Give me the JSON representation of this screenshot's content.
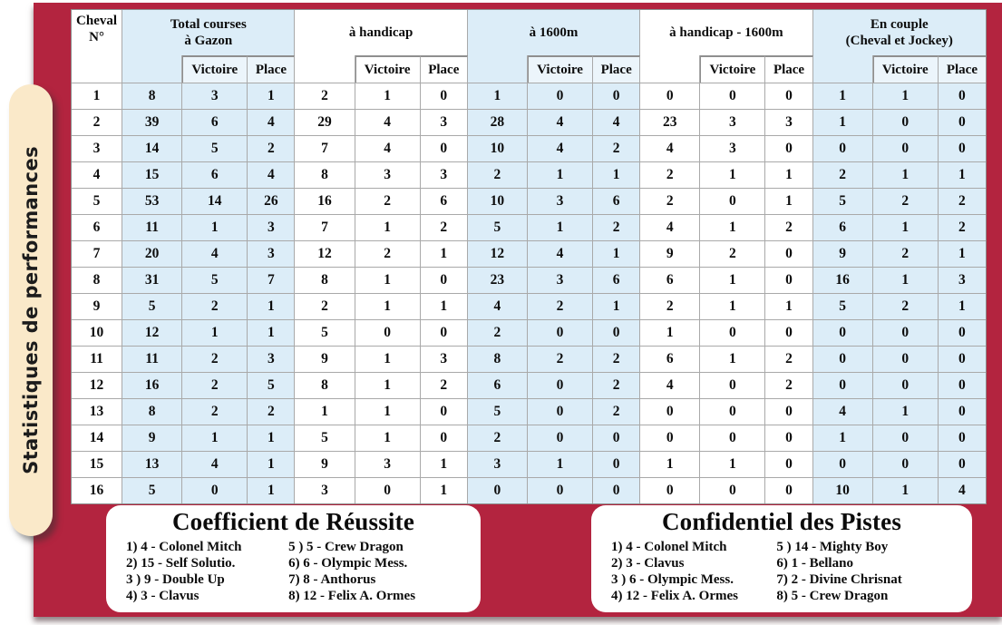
{
  "sidebar": {
    "title": "Statistiques de performances"
  },
  "colors": {
    "crimson": "#B3243F",
    "shaded_cell": "#DCEDF8",
    "pale_cell": "#ECF5FB",
    "pill": "#FAE9C9"
  },
  "table": {
    "corner": "Cheval\nN°",
    "subheader": {
      "victoire": "Victoire",
      "place": "Place"
    },
    "groups": [
      {
        "label": "Total courses\nà Gazon",
        "shaded": true
      },
      {
        "label": "à handicap",
        "shaded": false
      },
      {
        "label": "à 1600m",
        "shaded": true
      },
      {
        "label": "à handicap - 1600m",
        "shaded": false
      },
      {
        "label": "En couple\n(Cheval et Jockey)",
        "shaded": true
      }
    ],
    "rows": [
      {
        "cheval": "1",
        "values": [
          "8",
          "3",
          "1",
          "2",
          "1",
          "0",
          "1",
          "0",
          "0",
          "0",
          "0",
          "0",
          "1",
          "1",
          "0"
        ]
      },
      {
        "cheval": "2",
        "values": [
          "39",
          "6",
          "4",
          "29",
          "4",
          "3",
          "28",
          "4",
          "4",
          "23",
          "3",
          "3",
          "1",
          "0",
          "0"
        ]
      },
      {
        "cheval": "3",
        "values": [
          "14",
          "5",
          "2",
          "7",
          "4",
          "0",
          "10",
          "4",
          "2",
          "4",
          "3",
          "0",
          "0",
          "0",
          "0"
        ]
      },
      {
        "cheval": "4",
        "values": [
          "15",
          "6",
          "4",
          "8",
          "3",
          "3",
          "2",
          "1",
          "1",
          "2",
          "1",
          "1",
          "2",
          "1",
          "1"
        ]
      },
      {
        "cheval": "5",
        "values": [
          "53",
          "14",
          "26",
          "16",
          "2",
          "6",
          "10",
          "3",
          "6",
          "2",
          "0",
          "1",
          "5",
          "2",
          "2"
        ]
      },
      {
        "cheval": "6",
        "values": [
          "11",
          "1",
          "3",
          "7",
          "1",
          "2",
          "5",
          "1",
          "2",
          "4",
          "1",
          "2",
          "6",
          "1",
          "2"
        ]
      },
      {
        "cheval": "7",
        "values": [
          "20",
          "4",
          "3",
          "12",
          "2",
          "1",
          "12",
          "4",
          "1",
          "9",
          "2",
          "0",
          "9",
          "2",
          "1"
        ]
      },
      {
        "cheval": "8",
        "values": [
          "31",
          "5",
          "7",
          "8",
          "1",
          "0",
          "23",
          "3",
          "6",
          "6",
          "1",
          "0",
          "16",
          "1",
          "3"
        ]
      },
      {
        "cheval": "9",
        "values": [
          "5",
          "2",
          "1",
          "2",
          "1",
          "1",
          "4",
          "2",
          "1",
          "2",
          "1",
          "1",
          "5",
          "2",
          "1"
        ]
      },
      {
        "cheval": "10",
        "values": [
          "12",
          "1",
          "1",
          "5",
          "0",
          "0",
          "2",
          "0",
          "0",
          "1",
          "0",
          "0",
          "0",
          "0",
          "0"
        ]
      },
      {
        "cheval": "11",
        "values": [
          "11",
          "2",
          "3",
          "9",
          "1",
          "3",
          "8",
          "2",
          "2",
          "6",
          "1",
          "2",
          "0",
          "0",
          "0"
        ]
      },
      {
        "cheval": "12",
        "values": [
          "16",
          "2",
          "5",
          "8",
          "1",
          "2",
          "6",
          "0",
          "2",
          "4",
          "0",
          "2",
          "0",
          "0",
          "0"
        ]
      },
      {
        "cheval": "13",
        "values": [
          "8",
          "2",
          "2",
          "1",
          "1",
          "0",
          "5",
          "0",
          "2",
          "0",
          "0",
          "0",
          "4",
          "1",
          "0"
        ]
      },
      {
        "cheval": "14",
        "values": [
          "9",
          "1",
          "1",
          "5",
          "1",
          "0",
          "2",
          "0",
          "0",
          "0",
          "0",
          "0",
          "1",
          "0",
          "0"
        ]
      },
      {
        "cheval": "15",
        "values": [
          "13",
          "4",
          "1",
          "9",
          "3",
          "1",
          "3",
          "1",
          "0",
          "1",
          "1",
          "0",
          "0",
          "0",
          "0"
        ]
      },
      {
        "cheval": "16",
        "values": [
          "5",
          "0",
          "1",
          "3",
          "0",
          "1",
          "0",
          "0",
          "0",
          "0",
          "0",
          "0",
          "10",
          "1",
          "4"
        ]
      }
    ]
  },
  "panels": [
    {
      "title": "Coefficient de Réussite",
      "items": [
        "1) 4 - Colonel Mitch",
        "2) 15 - Self Solutio.",
        "3 ) 9 - Double Up",
        "4) 3 - Clavus",
        "5 ) 5 - Crew Dragon",
        "6) 6 - Olympic Mess.",
        "7) 8 - Anthorus",
        "8) 12 - Felix A. Ormes"
      ]
    },
    {
      "title": "Confidentiel des Pistes",
      "items": [
        "1) 4 - Colonel Mitch",
        "2) 3 - Clavus",
        "3 ) 6 - Olympic Mess.",
        "4) 12 - Felix A. Ormes",
        "5 ) 14 - Mighty Boy",
        "6) 1 - Bellano",
        "7) 2 - Divine Chrisnat",
        "8) 5 - Crew Dragon"
      ]
    }
  ]
}
